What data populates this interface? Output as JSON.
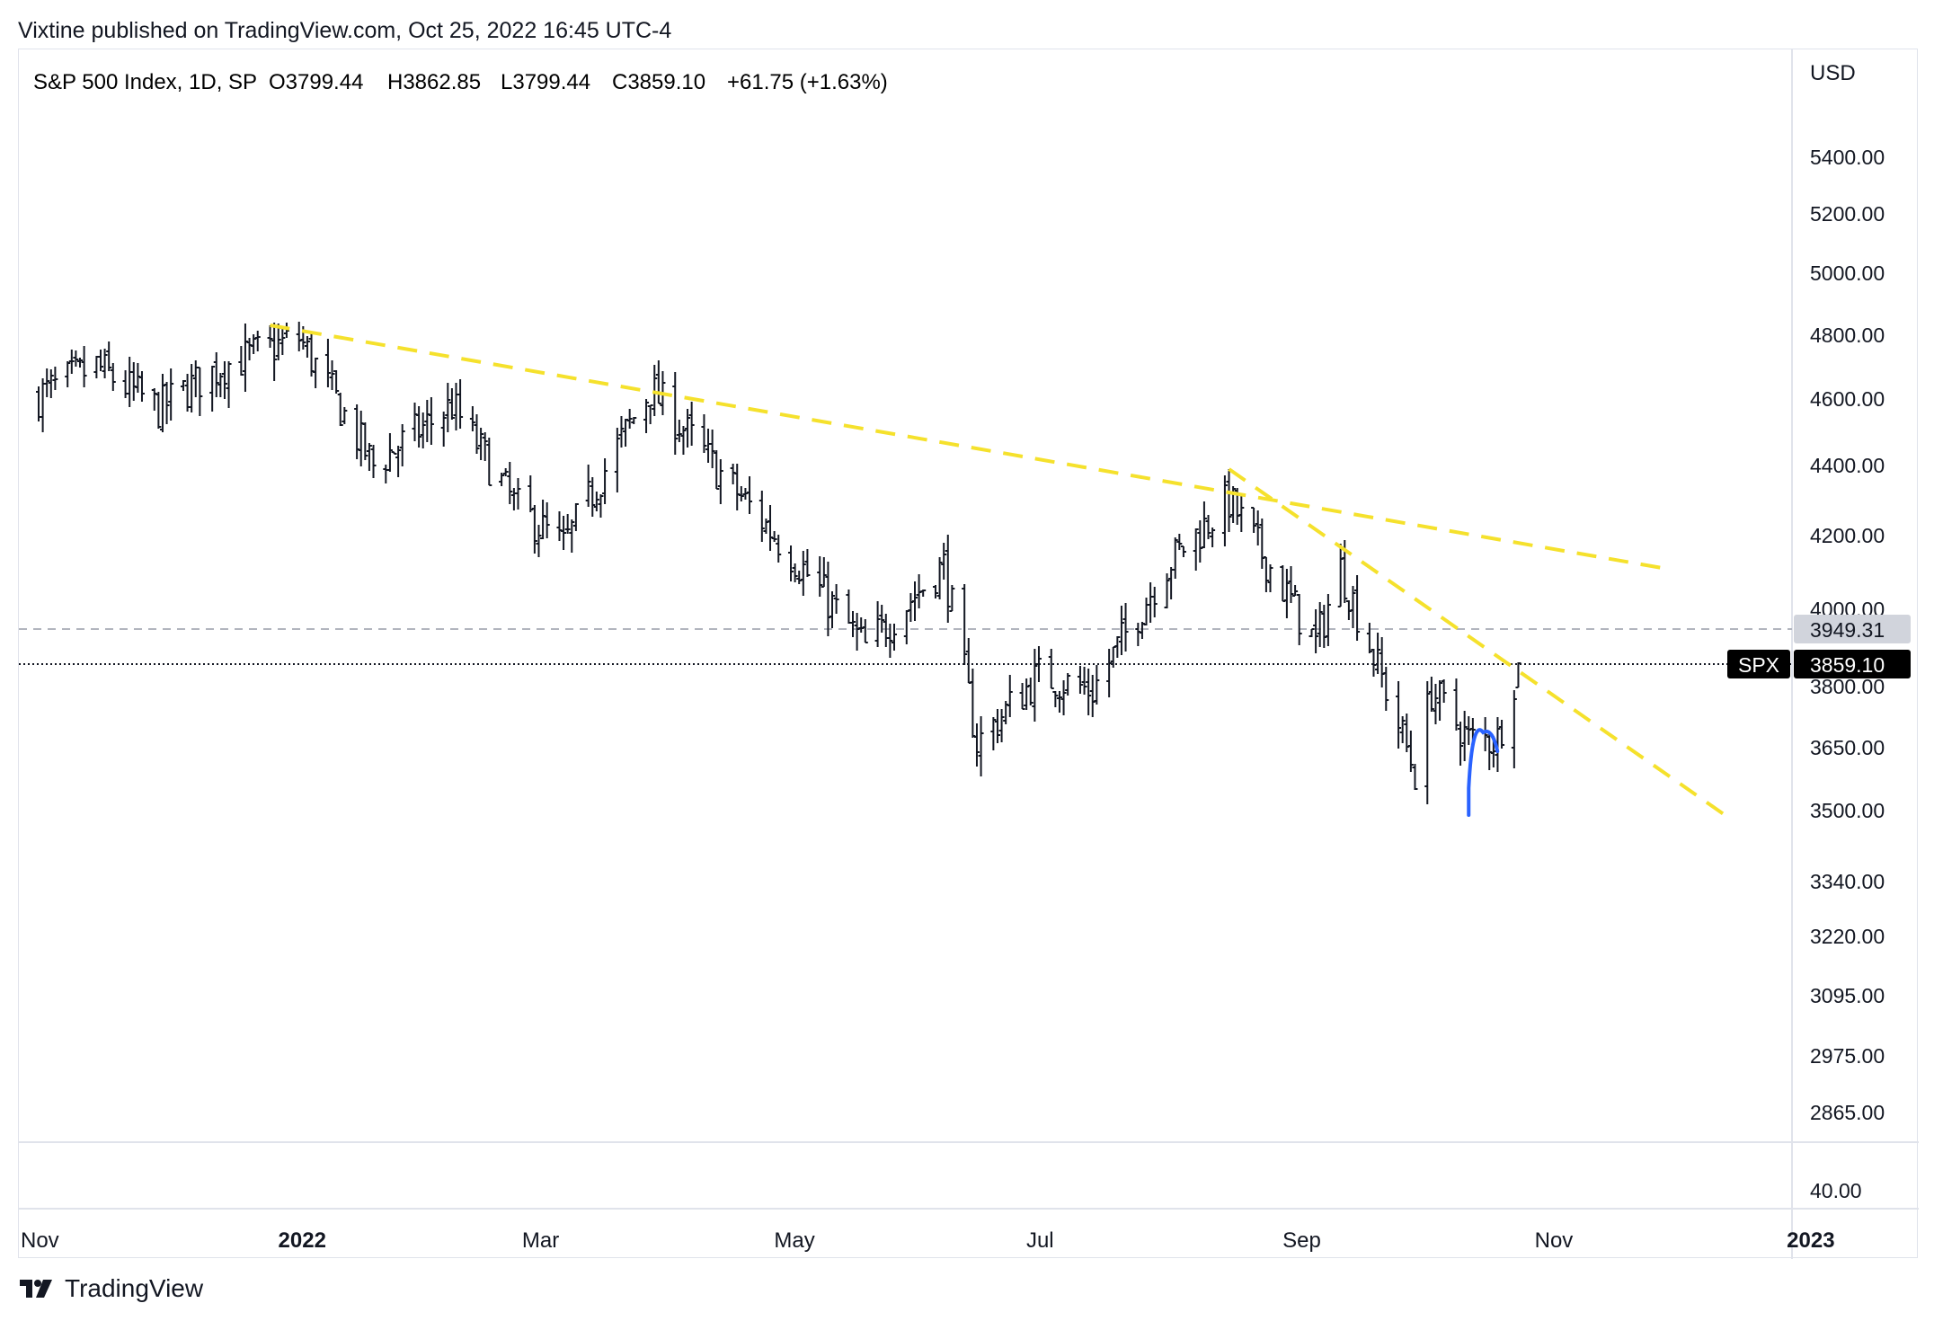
{
  "header": {
    "publisher_line": "Vixtine published on TradingView.com, Oct 25, 2022 16:45 UTC-4"
  },
  "legend": {
    "symbol": "S&P 500 Index, 1D, SP",
    "open": "O3799.44",
    "high": "H3862.85",
    "low": "L3799.44",
    "close": "C3859.10",
    "change": "+61.75 (+1.63%)"
  },
  "price_axis": {
    "currency": "USD",
    "ticks": [
      "5400.00",
      "5200.00",
      "5000.00",
      "4800.00",
      "4600.00",
      "4400.00",
      "4200.00",
      "4000.00",
      "3800.00",
      "3650.00",
      "3500.00",
      "3340.00",
      "3220.00",
      "3095.00",
      "2975.00",
      "2865.00"
    ],
    "volume_tick": "40.00",
    "dashed_level_label": "3949.31",
    "last_price_label": "3859.10",
    "symbol_badge": "SPX"
  },
  "time_axis": {
    "labels": [
      "Nov",
      "2022",
      "Mar",
      "May",
      "Jul",
      "Sep",
      "Nov",
      "2023"
    ]
  },
  "footer": {
    "brand": "TradingView"
  },
  "colors": {
    "bars": "#131722",
    "trendline": "#f5e12c",
    "annotation_curve": "#2962ff",
    "badge_bg": "#000000",
    "dashed_level_bg": "#d1d4dc",
    "grid_border": "#e0e3eb"
  },
  "chart_data": {
    "type": "ohlc",
    "scale": "log",
    "interval": "1D",
    "series": [
      {
        "name": "S&P 500 Index",
        "points": [
          {
            "date": "2021-11-01",
            "close": 4610
          },
          {
            "date": "2021-11-15",
            "close": 4700
          },
          {
            "date": "2021-11-30",
            "close": 4570
          },
          {
            "date": "2021-12-15",
            "close": 4700
          },
          {
            "date": "2022-01-03",
            "close": 4790
          },
          {
            "date": "2022-01-21",
            "close": 4400
          },
          {
            "date": "2022-02-09",
            "close": 4580
          },
          {
            "date": "2022-02-24",
            "close": 4290
          },
          {
            "date": "2022-03-08",
            "close": 4170
          },
          {
            "date": "2022-03-29",
            "close": 4630
          },
          {
            "date": "2022-04-14",
            "close": 4390
          },
          {
            "date": "2022-05-02",
            "close": 4150
          },
          {
            "date": "2022-05-20",
            "close": 3900
          },
          {
            "date": "2022-06-08",
            "close": 4120
          },
          {
            "date": "2022-06-16",
            "close": 3660
          },
          {
            "date": "2022-07-01",
            "close": 3830
          },
          {
            "date": "2022-07-14",
            "close": 3790
          },
          {
            "date": "2022-08-01",
            "close": 4120
          },
          {
            "date": "2022-08-16",
            "close": 4300
          },
          {
            "date": "2022-09-06",
            "close": 3910
          },
          {
            "date": "2022-09-12",
            "close": 4110
          },
          {
            "date": "2022-09-30",
            "close": 3590
          },
          {
            "date": "2022-10-04",
            "close": 3790
          },
          {
            "date": "2022-10-13",
            "close": 3670
          },
          {
            "date": "2022-10-20",
            "close": 3670
          },
          {
            "date": "2022-10-25",
            "close": 3859.1
          }
        ]
      }
    ],
    "last_bar": {
      "open": 3799.44,
      "high": 3862.85,
      "low": 3799.44,
      "close": 3859.1,
      "change": 61.75,
      "change_pct": 1.63
    },
    "horizontal_levels": [
      3949.31,
      3859.1
    ],
    "drawings": [
      {
        "type": "trendline",
        "from": {
          "date": "2021-12-27",
          "price": 4830
        },
        "to": {
          "date": "2022-11-30",
          "price": 4110
        }
      },
      {
        "type": "trendline",
        "from": {
          "date": "2022-08-16",
          "price": 4390
        },
        "to": {
          "date": "2022-12-14",
          "price": 3490
        }
      },
      {
        "type": "curve",
        "note": "hand-drawn bounce mark near October low"
      }
    ],
    "ylim": [
      2800,
      5600
    ],
    "xlim": [
      "2021-10-28",
      "2023-01-01"
    ]
  }
}
